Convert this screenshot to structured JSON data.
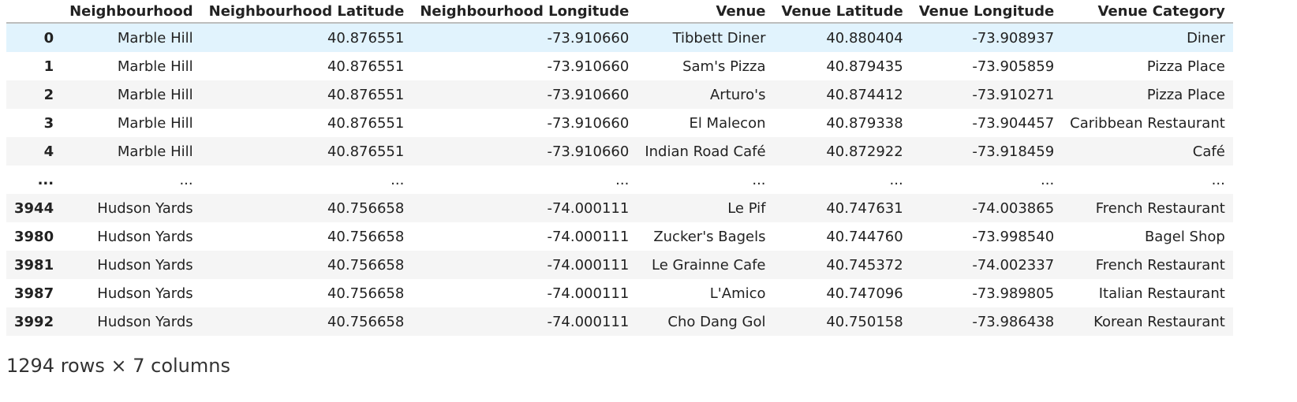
{
  "table": {
    "index_header": "",
    "columns": [
      "Neighbourhood",
      "Neighbourhood Latitude",
      "Neighbourhood Longitude",
      "Venue",
      "Venue Latitude",
      "Venue Longitude",
      "Venue Category"
    ],
    "rows": [
      {
        "index": "0",
        "cells": [
          "Marble Hill",
          "40.876551",
          "-73.910660",
          "Tibbett Diner",
          "40.880404",
          "-73.908937",
          "Diner"
        ]
      },
      {
        "index": "1",
        "cells": [
          "Marble Hill",
          "40.876551",
          "-73.910660",
          "Sam's Pizza",
          "40.879435",
          "-73.905859",
          "Pizza Place"
        ]
      },
      {
        "index": "2",
        "cells": [
          "Marble Hill",
          "40.876551",
          "-73.910660",
          "Arturo's",
          "40.874412",
          "-73.910271",
          "Pizza Place"
        ]
      },
      {
        "index": "3",
        "cells": [
          "Marble Hill",
          "40.876551",
          "-73.910660",
          "El Malecon",
          "40.879338",
          "-73.904457",
          "Caribbean Restaurant"
        ]
      },
      {
        "index": "4",
        "cells": [
          "Marble Hill",
          "40.876551",
          "-73.910660",
          "Indian Road Café",
          "40.872922",
          "-73.918459",
          "Café"
        ]
      },
      {
        "index": "...",
        "cells": [
          "...",
          "...",
          "...",
          "...",
          "...",
          "...",
          "..."
        ]
      },
      {
        "index": "3944",
        "cells": [
          "Hudson Yards",
          "40.756658",
          "-74.000111",
          "Le Pif",
          "40.747631",
          "-74.003865",
          "French Restaurant"
        ]
      },
      {
        "index": "3980",
        "cells": [
          "Hudson Yards",
          "40.756658",
          "-74.000111",
          "Zucker's Bagels",
          "40.744760",
          "-73.998540",
          "Bagel Shop"
        ]
      },
      {
        "index": "3981",
        "cells": [
          "Hudson Yards",
          "40.756658",
          "-74.000111",
          "Le Grainne Cafe",
          "40.745372",
          "-74.002337",
          "French Restaurant"
        ]
      },
      {
        "index": "3987",
        "cells": [
          "Hudson Yards",
          "40.756658",
          "-74.000111",
          "L'Amico",
          "40.747096",
          "-73.989805",
          "Italian Restaurant"
        ]
      },
      {
        "index": "3992",
        "cells": [
          "Hudson Yards",
          "40.756658",
          "-74.000111",
          "Cho Dang Gol",
          "40.750158",
          "-73.986438",
          "Korean Restaurant"
        ]
      }
    ],
    "hover_row": 0,
    "hover_color": "#e1f3fd",
    "stripe_color": "#f5f5f5"
  },
  "footer": {
    "shape_text": "1294 rows × 7 columns"
  }
}
